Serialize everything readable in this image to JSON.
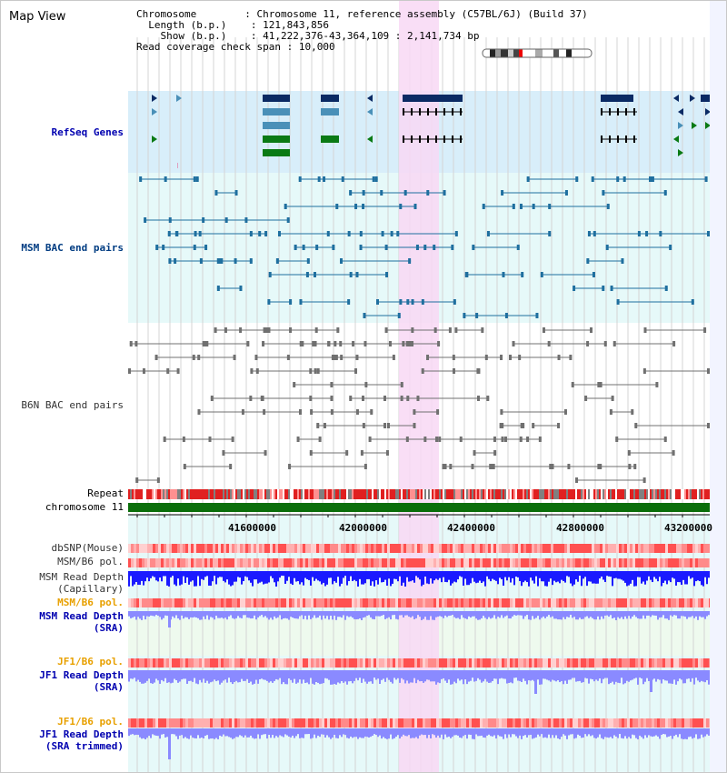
{
  "title": "Map View",
  "header": {
    "chromosome_label": "Chromosome",
    "chromosome_value": "Chromosome 11, reference assembly (C57BL/6J) (Build 37)",
    "length_label": "Length (b.p.)",
    "length_value": "121,843,856",
    "show_label": "Show (b.p.)",
    "show_value": "41,222,376-43,364,109 : 2,141,734 bp",
    "coverage_label": "Read coverage check span",
    "coverage_value": "10,000"
  },
  "tracks": {
    "refseq": "RefSeq Genes",
    "msm_bac": "MSM BAC end pairs",
    "b6n_bac": "B6N BAC end pairs",
    "repeat": "Repeat",
    "chromosome": "chromosome 11",
    "dbsnp": "dbSNP(Mouse)",
    "msm_b6_pol_1": "MSM/B6 pol.",
    "msm_read_depth_cap_1": "MSM Read Depth",
    "msm_read_depth_cap_2": "(Capillary)",
    "msm_b6_pol_2": "MSM/B6 pol.",
    "msm_read_depth_sra_1": "MSM Read Depth",
    "msm_read_depth_sra_2": "(SRA)",
    "jf1_b6_pol_1": "JF1/B6 pol.",
    "jf1_read_depth_sra_1": "JF1 Read Depth",
    "jf1_read_depth_sra_2": "(SRA)",
    "jf1_b6_pol_2": "JF1/B6 pol.",
    "jf1_read_depth_trim_1": "JF1 Read Depth",
    "jf1_read_depth_trim_2": "(SRA trimmed)"
  },
  "axis_ticks": [
    "41600000",
    "42000000",
    "42400000",
    "42800000",
    "43200000"
  ],
  "colors": {
    "refseq_bg": "#d8eefa",
    "msm_bg": "#e6f9f9",
    "highlight": "#f8d8f4",
    "gene_navy": "#0a2a64",
    "gene_steel": "#4a90b8",
    "gene_green": "#0a7a14",
    "chromosome": "#0a6e0a",
    "depth_blue": "#1a1aff",
    "depth_light": "#8a8aff"
  }
}
